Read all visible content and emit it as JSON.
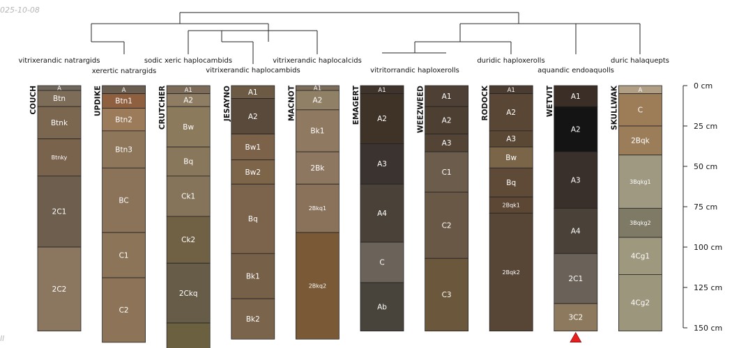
{
  "date_stamp": "025-10-08",
  "corner_mark": "ll",
  "depth_axis": {
    "unit": "cm",
    "max_depth": 155,
    "ticks": [
      {
        "value": 0,
        "label": "0 cm"
      },
      {
        "value": 25,
        "label": "25 cm"
      },
      {
        "value": 50,
        "label": "50 cm"
      },
      {
        "value": 75,
        "label": "75 cm"
      },
      {
        "value": 100,
        "label": "100 cm"
      },
      {
        "value": 125,
        "label": "125 cm"
      },
      {
        "value": 150,
        "label": "150 cm"
      }
    ]
  },
  "taxa_labels": [
    "vitrixerandic natrargids",
    "xerertic natrargids",
    "sodic xeric haplocambids",
    "vitrixerandic haplocambids",
    "vitrixerandic haplocalcids",
    "vitritorrandic haploxerolls",
    "duridic haploxerolls",
    "aquandic endoaquolls",
    "duric halaquepts"
  ],
  "profiles": [
    {
      "name": "COUCH",
      "horizons": [
        {
          "label": "A",
          "top": 0,
          "bottom": 3,
          "color": "#6f675c"
        },
        {
          "label": "Btn",
          "top": 3,
          "bottom": 13,
          "color": "#7d6c58"
        },
        {
          "label": "Btnk",
          "top": 13,
          "bottom": 33,
          "color": "#7b6650"
        },
        {
          "label": "Btnky",
          "top": 33,
          "bottom": 56,
          "color": "#7a634d"
        },
        {
          "label": "2C1",
          "top": 56,
          "bottom": 100,
          "color": "#6e5e4e"
        },
        {
          "label": "2C2",
          "top": 100,
          "bottom": 152,
          "color": "#8b7660"
        }
      ]
    },
    {
      "name": "UPDIKE",
      "horizons": [
        {
          "label": "A",
          "top": 0,
          "bottom": 5,
          "color": "#6a5e50"
        },
        {
          "label": "Btn1",
          "top": 5,
          "bottom": 14,
          "color": "#8f6040"
        },
        {
          "label": "Btn2",
          "top": 14,
          "bottom": 28,
          "color": "#9b7b5a"
        },
        {
          "label": "Btn3",
          "top": 28,
          "bottom": 51,
          "color": "#8e765b"
        },
        {
          "label": "BC",
          "top": 51,
          "bottom": 91,
          "color": "#8b735a"
        },
        {
          "label": "C1",
          "top": 91,
          "bottom": 119,
          "color": "#8c7459"
        },
        {
          "label": "C2",
          "top": 119,
          "bottom": 159,
          "color": "#8d7458"
        }
      ]
    },
    {
      "name": "CRUTCHER",
      "horizons": [
        {
          "label": "A1",
          "top": 0,
          "bottom": 5,
          "color": "#7b6b58"
        },
        {
          "label": "A2",
          "top": 5,
          "bottom": 13,
          "color": "#8f7d63"
        },
        {
          "label": "Bw",
          "top": 13,
          "bottom": 38,
          "color": "#8c7a5d"
        },
        {
          "label": "Bq",
          "top": 38,
          "bottom": 56,
          "color": "#88775a"
        },
        {
          "label": "Ck1",
          "top": 56,
          "bottom": 81,
          "color": "#857459"
        },
        {
          "label": "Ck2",
          "top": 81,
          "bottom": 110,
          "color": "#716144"
        },
        {
          "label": "2Ckq",
          "top": 110,
          "bottom": 147,
          "color": "#665c48"
        },
        {
          "label": "",
          "top": 147,
          "bottom": 163,
          "color": "#6b603f"
        }
      ]
    },
    {
      "name": "JESAYNO",
      "horizons": [
        {
          "label": "A1",
          "top": 0,
          "bottom": 8,
          "color": "#6d5a44"
        },
        {
          "label": "A2",
          "top": 8,
          "bottom": 30,
          "color": "#5a4a3c"
        },
        {
          "label": "Bw1",
          "top": 30,
          "bottom": 46,
          "color": "#7b6248"
        },
        {
          "label": "Bw2",
          "top": 46,
          "bottom": 61,
          "color": "#7d654a"
        },
        {
          "label": "Bq",
          "top": 61,
          "bottom": 104,
          "color": "#7c644c"
        },
        {
          "label": "Bk1",
          "top": 104,
          "bottom": 132,
          "color": "#766048"
        },
        {
          "label": "Bk2",
          "top": 132,
          "bottom": 157,
          "color": "#7a644c"
        }
      ]
    },
    {
      "name": "MACNOT",
      "horizons": [
        {
          "label": "A1",
          "top": 0,
          "bottom": 3,
          "color": "#7b6d59"
        },
        {
          "label": "A2",
          "top": 3,
          "bottom": 15,
          "color": "#908066"
        },
        {
          "label": "Bk1",
          "top": 15,
          "bottom": 41,
          "color": "#8f7960"
        },
        {
          "label": "2Bk",
          "top": 41,
          "bottom": 61,
          "color": "#8d7760"
        },
        {
          "label": "2Bkq1",
          "top": 61,
          "bottom": 91,
          "color": "#8a725a"
        },
        {
          "label": "2Bkq2",
          "top": 91,
          "bottom": 157,
          "color": "#7a5a36"
        }
      ]
    },
    {
      "name": "EMAGERT",
      "horizons": [
        {
          "label": "A1",
          "top": 0,
          "bottom": 5,
          "color": "#3e342c"
        },
        {
          "label": "A2",
          "top": 5,
          "bottom": 36,
          "color": "#3f3226"
        },
        {
          "label": "A3",
          "top": 36,
          "bottom": 61,
          "color": "#3b3330"
        },
        {
          "label": "A4",
          "top": 61,
          "bottom": 97,
          "color": "#4a4238"
        },
        {
          "label": "C",
          "top": 97,
          "bottom": 122,
          "color": "#6b635a"
        },
        {
          "label": "Ab",
          "top": 122,
          "bottom": 152,
          "color": "#48443b"
        }
      ]
    },
    {
      "name": "WEEZWEED",
      "horizons": [
        {
          "label": "A1",
          "top": 0,
          "bottom": 13,
          "color": "#4e4034"
        },
        {
          "label": "A2",
          "top": 13,
          "bottom": 30,
          "color": "#4d3f32"
        },
        {
          "label": "A3",
          "top": 30,
          "bottom": 41,
          "color": "#534435"
        },
        {
          "label": "C1",
          "top": 41,
          "bottom": 66,
          "color": "#6b5c4c"
        },
        {
          "label": "C2",
          "top": 66,
          "bottom": 107,
          "color": "#6a5847"
        },
        {
          "label": "C3",
          "top": 107,
          "bottom": 152,
          "color": "#6b573b"
        }
      ]
    },
    {
      "name": "RODOCK",
      "horizons": [
        {
          "label": "A1",
          "top": 0,
          "bottom": 5,
          "color": "#4a3c30"
        },
        {
          "label": "A2",
          "top": 5,
          "bottom": 28,
          "color": "#5a4634"
        },
        {
          "label": "A3",
          "top": 28,
          "bottom": 38,
          "color": "#5a4835"
        },
        {
          "label": "Bw",
          "top": 38,
          "bottom": 51,
          "color": "#7b6548"
        },
        {
          "label": "Bq",
          "top": 51,
          "bottom": 69,
          "color": "#5e4a36"
        },
        {
          "label": "2Bqk1",
          "top": 69,
          "bottom": 79,
          "color": "#5c4735"
        },
        {
          "label": "2Bqk2",
          "top": 79,
          "bottom": 152,
          "color": "#574636"
        }
      ]
    },
    {
      "name": "WETVIT",
      "horizons": [
        {
          "label": "A1",
          "top": 0,
          "bottom": 13,
          "color": "#3b2e26"
        },
        {
          "label": "A2",
          "top": 13,
          "bottom": 41,
          "color": "#141414"
        },
        {
          "label": "A3",
          "top": 41,
          "bottom": 76,
          "color": "#3a302b"
        },
        {
          "label": "A4",
          "top": 76,
          "bottom": 104,
          "color": "#4a4238"
        },
        {
          "label": "2C1",
          "top": 104,
          "bottom": 135,
          "color": "#6a6258"
        },
        {
          "label": "3C2",
          "top": 135,
          "bottom": 152,
          "color": "#8d7a5e"
        }
      ]
    },
    {
      "name": "SKULLWAK",
      "horizons": [
        {
          "label": "A",
          "top": 0,
          "bottom": 5,
          "color": "#b09e85"
        },
        {
          "label": "C",
          "top": 5,
          "bottom": 25,
          "color": "#9d7d58"
        },
        {
          "label": "2Bqk",
          "top": 25,
          "bottom": 43,
          "color": "#9b7d5a"
        },
        {
          "label": "3Bqkg1",
          "top": 43,
          "bottom": 76,
          "color": "#9e9980"
        },
        {
          "label": "3Bqkg2",
          "top": 76,
          "bottom": 94,
          "color": "#7f7a66"
        },
        {
          "label": "4Cg1",
          "top": 94,
          "bottom": 117,
          "color": "#9e987f"
        },
        {
          "label": "4Cg2",
          "top": 117,
          "bottom": 152,
          "color": "#9c967d"
        }
      ]
    }
  ],
  "marker": {
    "profile": "WETVIT",
    "depth": 152,
    "color": "#e81f1f"
  }
}
